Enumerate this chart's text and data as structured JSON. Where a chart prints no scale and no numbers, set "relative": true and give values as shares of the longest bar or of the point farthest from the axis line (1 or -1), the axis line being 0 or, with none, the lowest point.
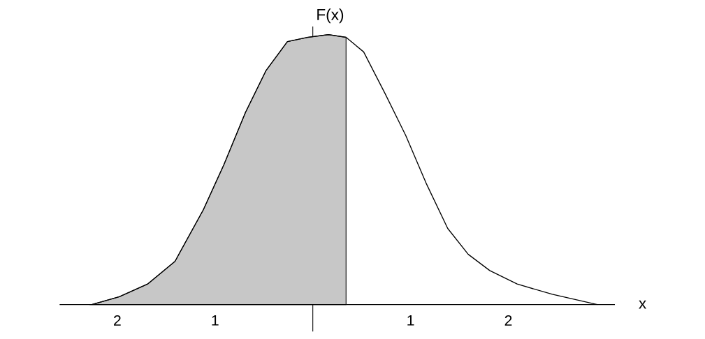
{
  "chart_data": {
    "type": "line",
    "relative": true,
    "xlabel": "x",
    "ylabel": "F(x)",
    "xlim": [
      -2.59,
      3.09
    ],
    "xticks": [
      {
        "value": -2,
        "label": "2"
      },
      {
        "value": -1,
        "label": "1"
      },
      {
        "value": 1,
        "label": "1"
      },
      {
        "value": 2,
        "label": "2"
      }
    ],
    "series": [
      {
        "color": "#000000",
        "x": [
          -2.26,
          -1.98,
          -1.69,
          -1.41,
          -1.12,
          -0.91,
          -0.69,
          -0.48,
          -0.26,
          -0.05,
          0.16,
          0.34,
          0.52,
          0.74,
          0.95,
          1.16,
          1.38,
          1.59,
          1.81,
          2.09,
          2.45,
          2.91
        ],
        "values": [
          0,
          0.029,
          0.076,
          0.16,
          0.351,
          0.518,
          0.711,
          0.866,
          0.974,
          0.99,
          1,
          0.99,
          0.936,
          0.781,
          0.627,
          0.449,
          0.282,
          0.186,
          0.126,
          0.076,
          0.038,
          0
        ]
      },
      {
        "type": "area",
        "color": "#000000",
        "x": [
          -2.26,
          -1.98,
          -1.69,
          -1.41,
          -1.12,
          -0.91,
          -0.69,
          -0.48,
          -0.26,
          -0.05,
          0.16,
          0.34
        ],
        "values": [
          0,
          0.029,
          0.076,
          0.16,
          0.351,
          0.518,
          0.711,
          0.866,
          0.974,
          0.99,
          1,
          0.99
        ]
      }
    ]
  }
}
